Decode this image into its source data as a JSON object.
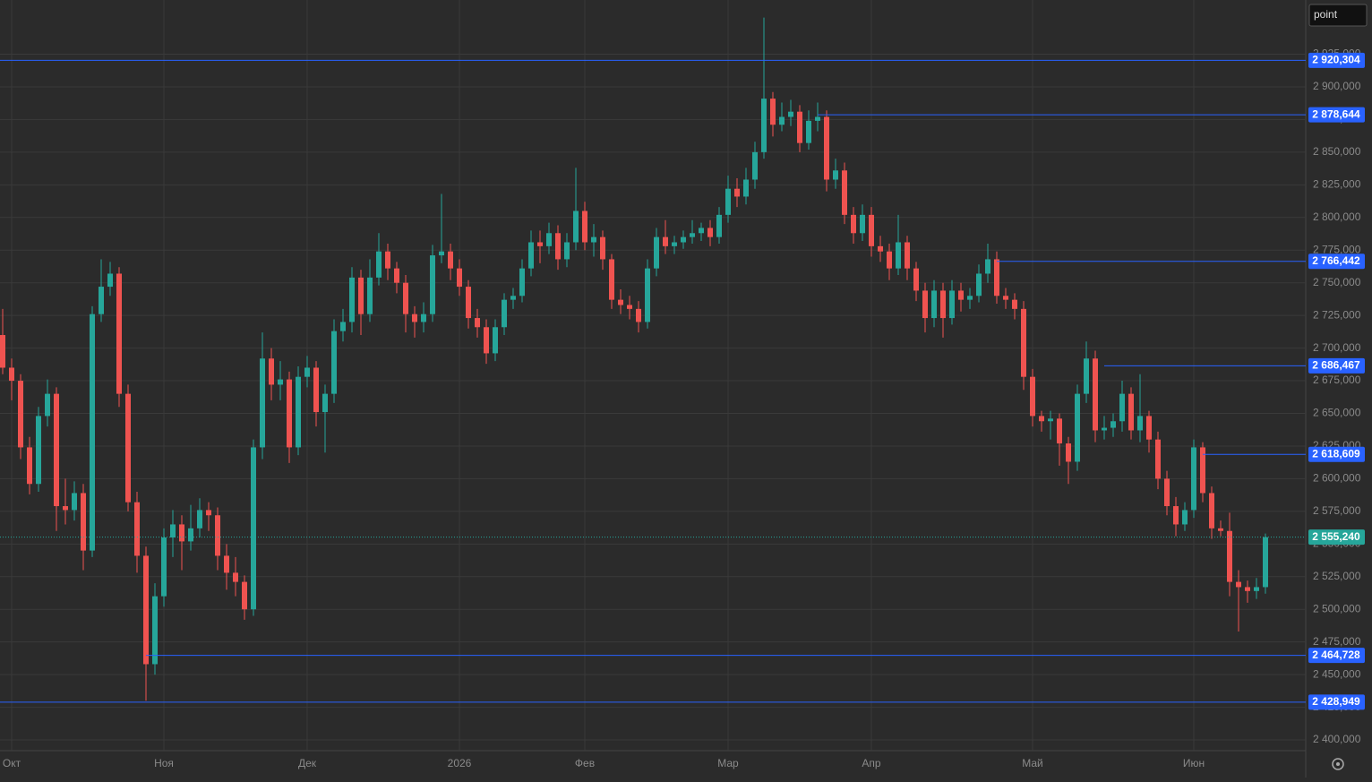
{
  "chart_data": {
    "type": "candlestick",
    "instrument": "point",
    "up_color": "#26a69a",
    "down_color": "#ef5350",
    "level_color": "#2962ff",
    "grid": true,
    "ylim": [
      2391.8,
      2966.5
    ],
    "yticks": [
      {
        "value": 2400,
        "label": "2 400,000"
      },
      {
        "value": 2425,
        "label": "2 425,000"
      },
      {
        "value": 2450,
        "label": "2 450,000"
      },
      {
        "value": 2475,
        "label": "2 475,000"
      },
      {
        "value": 2500,
        "label": "2 500,000"
      },
      {
        "value": 2525,
        "label": "2 525,000"
      },
      {
        "value": 2550,
        "label": "2 550,000"
      },
      {
        "value": 2575,
        "label": "2 575,000"
      },
      {
        "value": 2600,
        "label": "2 600,000"
      },
      {
        "value": 2625,
        "label": "2 625,000"
      },
      {
        "value": 2650,
        "label": "2 650,000"
      },
      {
        "value": 2675,
        "label": "2 675,000"
      },
      {
        "value": 2700,
        "label": "2 700,000"
      },
      {
        "value": 2725,
        "label": "2 725,000"
      },
      {
        "value": 2750,
        "label": "2 750,000"
      },
      {
        "value": 2775,
        "label": "2 775,000"
      },
      {
        "value": 2800,
        "label": "2 800,000"
      },
      {
        "value": 2825,
        "label": "2 825,000"
      },
      {
        "value": 2850,
        "label": "2 850,000"
      },
      {
        "value": 2875,
        "label": "2 875,000"
      },
      {
        "value": 2900,
        "label": "2 900,000"
      },
      {
        "value": 2925,
        "label": "2 925,000"
      }
    ],
    "xlim": [
      -0.3,
      145.5
    ],
    "xticks": [
      {
        "value": 1,
        "label": "Окт"
      },
      {
        "value": 18,
        "label": "Ноя"
      },
      {
        "value": 34,
        "label": "Дек"
      },
      {
        "value": 51,
        "label": "2026"
      },
      {
        "value": 65,
        "label": "Фев"
      },
      {
        "value": 81,
        "label": "Мар"
      },
      {
        "value": 97,
        "label": "Апр"
      },
      {
        "value": 115,
        "label": "Май"
      },
      {
        "value": 133,
        "label": "Июн"
      }
    ],
    "candles": [
      [
        2710,
        2730,
        2680,
        2685
      ],
      [
        2685,
        2692,
        2660,
        2675
      ],
      [
        2675,
        2680,
        2615,
        2624
      ],
      [
        2624,
        2632,
        2588,
        2596
      ],
      [
        2596,
        2655,
        2590,
        2648
      ],
      [
        2648,
        2676,
        2640,
        2665
      ],
      [
        2665,
        2670,
        2560,
        2579
      ],
      [
        2579,
        2600,
        2565,
        2576
      ],
      [
        2576,
        2598,
        2568,
        2589
      ],
      [
        2589,
        2596,
        2530,
        2545
      ],
      [
        2545,
        2732,
        2540,
        2726
      ],
      [
        2726,
        2768,
        2720,
        2747
      ],
      [
        2747,
        2766,
        2740,
        2757
      ],
      [
        2757,
        2762,
        2655,
        2665
      ],
      [
        2665,
        2672,
        2575,
        2582
      ],
      [
        2582,
        2590,
        2528,
        2541
      ],
      [
        2541,
        2548,
        2430,
        2458
      ],
      [
        2458,
        2520,
        2450,
        2510
      ],
      [
        2510,
        2562,
        2502,
        2555
      ],
      [
        2555,
        2576,
        2540,
        2565
      ],
      [
        2565,
        2572,
        2530,
        2552
      ],
      [
        2552,
        2580,
        2545,
        2562
      ],
      [
        2562,
        2585,
        2555,
        2576
      ],
      [
        2576,
        2582,
        2560,
        2572
      ],
      [
        2572,
        2578,
        2530,
        2541
      ],
      [
        2541,
        2550,
        2515,
        2528
      ],
      [
        2528,
        2540,
        2510,
        2521
      ],
      [
        2521,
        2526,
        2492,
        2500
      ],
      [
        2500,
        2630,
        2495,
        2624
      ],
      [
        2624,
        2712,
        2615,
        2692
      ],
      [
        2692,
        2700,
        2660,
        2672
      ],
      [
        2672,
        2690,
        2660,
        2676
      ],
      [
        2676,
        2682,
        2612,
        2624
      ],
      [
        2624,
        2686,
        2618,
        2678
      ],
      [
        2678,
        2694,
        2670,
        2685
      ],
      [
        2685,
        2690,
        2640,
        2651
      ],
      [
        2651,
        2672,
        2620,
        2665
      ],
      [
        2665,
        2722,
        2658,
        2713
      ],
      [
        2713,
        2730,
        2705,
        2720
      ],
      [
        2720,
        2762,
        2712,
        2754
      ],
      [
        2754,
        2760,
        2710,
        2726
      ],
      [
        2726,
        2768,
        2720,
        2754
      ],
      [
        2754,
        2788,
        2748,
        2774
      ],
      [
        2774,
        2780,
        2752,
        2761
      ],
      [
        2761,
        2766,
        2742,
        2750
      ],
      [
        2750,
        2756,
        2712,
        2726
      ],
      [
        2726,
        2732,
        2708,
        2720
      ],
      [
        2720,
        2735,
        2712,
        2726
      ],
      [
        2726,
        2779,
        2720,
        2771
      ],
      [
        2771,
        2818,
        2765,
        2774
      ],
      [
        2774,
        2780,
        2752,
        2761
      ],
      [
        2761,
        2768,
        2740,
        2747
      ],
      [
        2747,
        2752,
        2715,
        2723
      ],
      [
        2723,
        2730,
        2708,
        2716
      ],
      [
        2716,
        2722,
        2688,
        2696
      ],
      [
        2696,
        2722,
        2690,
        2716
      ],
      [
        2716,
        2742,
        2710,
        2737
      ],
      [
        2737,
        2746,
        2730,
        2740
      ],
      [
        2740,
        2768,
        2735,
        2761
      ],
      [
        2761,
        2790,
        2755,
        2781
      ],
      [
        2781,
        2790,
        2765,
        2778
      ],
      [
        2778,
        2796,
        2772,
        2788
      ],
      [
        2788,
        2794,
        2760,
        2768
      ],
      [
        2768,
        2788,
        2762,
        2781
      ],
      [
        2781,
        2838,
        2775,
        2805
      ],
      [
        2805,
        2812,
        2775,
        2781
      ],
      [
        2781,
        2795,
        2770,
        2785
      ],
      [
        2785,
        2790,
        2760,
        2768
      ],
      [
        2768,
        2772,
        2730,
        2737
      ],
      [
        2737,
        2745,
        2726,
        2733
      ],
      [
        2733,
        2740,
        2722,
        2730
      ],
      [
        2730,
        2736,
        2712,
        2720
      ],
      [
        2720,
        2768,
        2715,
        2761
      ],
      [
        2761,
        2792,
        2755,
        2785
      ],
      [
        2785,
        2798,
        2772,
        2778
      ],
      [
        2778,
        2786,
        2772,
        2781
      ],
      [
        2781,
        2790,
        2776,
        2785
      ],
      [
        2785,
        2798,
        2780,
        2788
      ],
      [
        2788,
        2796,
        2782,
        2792
      ],
      [
        2792,
        2798,
        2778,
        2785
      ],
      [
        2785,
        2808,
        2780,
        2802
      ],
      [
        2802,
        2832,
        2796,
        2822
      ],
      [
        2822,
        2830,
        2808,
        2816
      ],
      [
        2816,
        2838,
        2810,
        2829
      ],
      [
        2829,
        2858,
        2822,
        2850
      ],
      [
        2850,
        2953,
        2845,
        2891
      ],
      [
        2891,
        2896,
        2862,
        2871
      ],
      [
        2871,
        2888,
        2866,
        2877
      ],
      [
        2877,
        2890,
        2870,
        2881
      ],
      [
        2881,
        2886,
        2850,
        2857
      ],
      [
        2857,
        2882,
        2852,
        2874
      ],
      [
        2874,
        2888,
        2866,
        2877
      ],
      [
        2877,
        2882,
        2820,
        2829
      ],
      [
        2829,
        2845,
        2822,
        2836
      ],
      [
        2836,
        2842,
        2795,
        2802
      ],
      [
        2802,
        2808,
        2780,
        2788
      ],
      [
        2788,
        2810,
        2782,
        2802
      ],
      [
        2802,
        2808,
        2770,
        2778
      ],
      [
        2778,
        2786,
        2766,
        2774
      ],
      [
        2774,
        2780,
        2752,
        2761
      ],
      [
        2761,
        2802,
        2756,
        2781
      ],
      [
        2781,
        2786,
        2752,
        2761
      ],
      [
        2761,
        2766,
        2736,
        2744
      ],
      [
        2744,
        2750,
        2712,
        2723
      ],
      [
        2723,
        2752,
        2716,
        2744
      ],
      [
        2744,
        2750,
        2708,
        2723
      ],
      [
        2723,
        2752,
        2718,
        2744
      ],
      [
        2744,
        2750,
        2728,
        2737
      ],
      [
        2737,
        2746,
        2730,
        2740
      ],
      [
        2740,
        2764,
        2735,
        2757
      ],
      [
        2757,
        2780,
        2750,
        2768
      ],
      [
        2768,
        2774,
        2734,
        2740
      ],
      [
        2740,
        2746,
        2730,
        2737
      ],
      [
        2737,
        2742,
        2722,
        2730
      ],
      [
        2730,
        2736,
        2668,
        2678
      ],
      [
        2678,
        2684,
        2640,
        2648
      ],
      [
        2648,
        2652,
        2636,
        2644
      ],
      [
        2644,
        2652,
        2630,
        2646
      ],
      [
        2646,
        2650,
        2610,
        2627
      ],
      [
        2627,
        2632,
        2596,
        2613
      ],
      [
        2613,
        2672,
        2606,
        2665
      ],
      [
        2665,
        2705,
        2658,
        2692
      ],
      [
        2692,
        2698,
        2628,
        2637
      ],
      [
        2637,
        2648,
        2630,
        2639
      ],
      [
        2639,
        2650,
        2632,
        2644
      ],
      [
        2644,
        2675,
        2636,
        2665
      ],
      [
        2665,
        2670,
        2630,
        2637
      ],
      [
        2637,
        2680,
        2628,
        2648
      ],
      [
        2648,
        2652,
        2620,
        2630
      ],
      [
        2630,
        2636,
        2592,
        2600
      ],
      [
        2600,
        2606,
        2572,
        2579
      ],
      [
        2579,
        2586,
        2556,
        2565
      ],
      [
        2565,
        2582,
        2560,
        2576
      ],
      [
        2576,
        2630,
        2570,
        2624
      ],
      [
        2624,
        2628,
        2582,
        2589
      ],
      [
        2589,
        2594,
        2554,
        2562
      ],
      [
        2562,
        2568,
        2556,
        2560
      ],
      [
        2560,
        2574,
        2510,
        2521
      ],
      [
        2521,
        2530,
        2483,
        2517
      ],
      [
        2517,
        2522,
        2505,
        2514
      ],
      [
        2514,
        2524,
        2508,
        2517
      ],
      [
        2517,
        2558,
        2512,
        2555.24
      ]
    ],
    "levels": [
      {
        "value": 2920.304,
        "label": "2 920,304",
        "start": 0
      },
      {
        "value": 2878.644,
        "label": "2 878,644",
        "start": 91
      },
      {
        "value": 2766.442,
        "label": "2 766,442",
        "start": 111
      },
      {
        "value": 2686.467,
        "label": "2 686,467",
        "start": 123
      },
      {
        "value": 2618.609,
        "label": "2 618,609",
        "start": 134
      },
      {
        "value": 2464.728,
        "label": "2 464,728",
        "start": 16
      },
      {
        "value": 2428.949,
        "label": "2 428,949",
        "start": 0
      }
    ],
    "last_price": {
      "value": 2555.24,
      "label": "2 555,240"
    }
  }
}
